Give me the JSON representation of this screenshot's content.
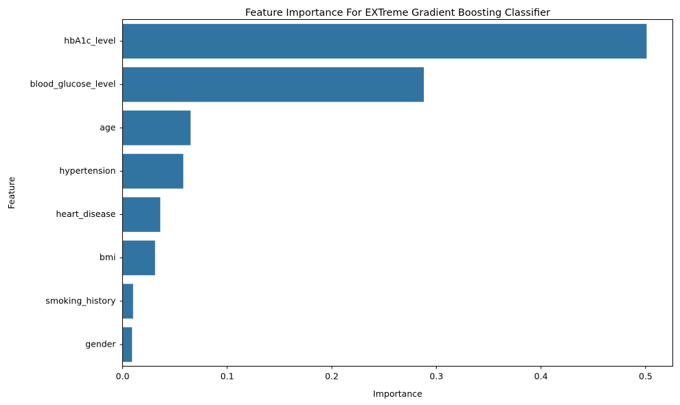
{
  "chart_data": {
    "type": "bar",
    "orientation": "horizontal",
    "title": "Feature Importance For EXTreme Gradient Boosting Classifier",
    "xlabel": "Importance",
    "ylabel": "Feature",
    "categories": [
      "hbA1c_level",
      "blood_glucose_level",
      "age",
      "hypertension",
      "heart_disease",
      "bmi",
      "smoking_history",
      "gender"
    ],
    "values": [
      0.501,
      0.288,
      0.065,
      0.058,
      0.036,
      0.031,
      0.01,
      0.009
    ],
    "xlim": [
      0,
      0.526
    ],
    "xticks": [
      0.0,
      0.1,
      0.2,
      0.3,
      0.4,
      0.5
    ],
    "xtick_labels": [
      "0.0",
      "0.1",
      "0.2",
      "0.3",
      "0.4",
      "0.5"
    ],
    "bar_color": "#3274a1",
    "grid": false,
    "legend": "none"
  }
}
